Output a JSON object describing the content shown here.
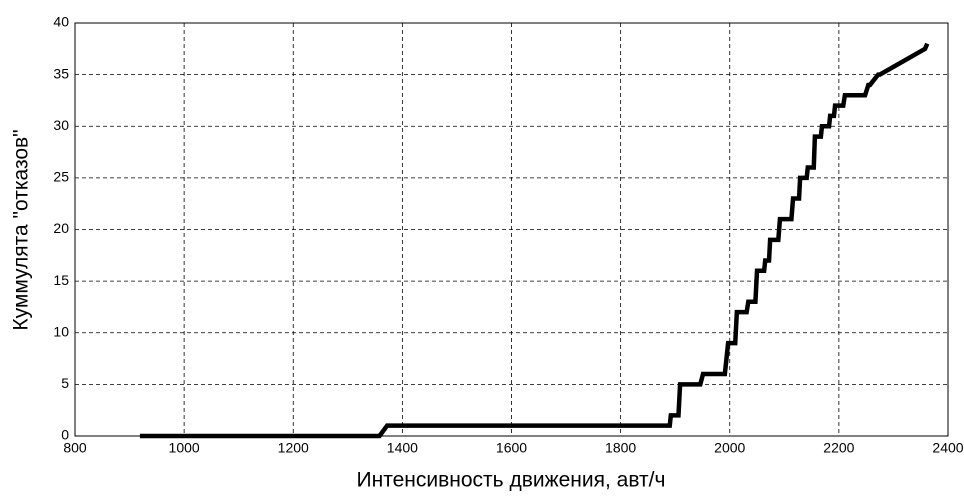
{
  "chart_data": {
    "type": "line",
    "xlabel": "Интенсивность движения, авт/ч",
    "ylabel": "Куммулята \"отказов\"",
    "xlim": [
      800,
      2400
    ],
    "xticks": [
      800,
      1000,
      1200,
      1400,
      1600,
      1800,
      2000,
      2200,
      2400
    ],
    "ylim": [
      0,
      40
    ],
    "yticks": [
      0,
      5,
      10,
      15,
      20,
      25,
      30,
      35,
      40
    ],
    "grid": true,
    "series": [
      {
        "color": "#000000",
        "x": [
          919,
          1358,
          1372,
          1890,
          1892,
          1906,
          1909,
          1946,
          1951,
          1991,
          1997,
          2010,
          2013,
          2031,
          2034,
          2047,
          2050,
          2063,
          2065,
          2072,
          2074,
          2089,
          2092,
          2113,
          2116,
          2127,
          2129,
          2141,
          2143,
          2154,
          2156,
          2167,
          2169,
          2182,
          2184,
          2191,
          2193,
          2208,
          2211,
          2248,
          2254,
          2257,
          2272,
          2275,
          2358,
          2362
        ],
        "values": [
          0,
          0,
          1,
          1,
          2,
          2,
          5,
          5,
          6,
          6,
          9,
          9,
          12,
          12,
          13,
          13,
          16,
          16,
          17,
          17,
          19,
          19,
          21,
          21,
          23,
          23,
          25,
          25,
          26,
          26,
          29,
          29,
          30,
          30,
          31,
          31,
          32,
          32,
          33,
          33,
          34,
          34,
          35,
          35,
          37.5,
          38
        ]
      }
    ]
  }
}
